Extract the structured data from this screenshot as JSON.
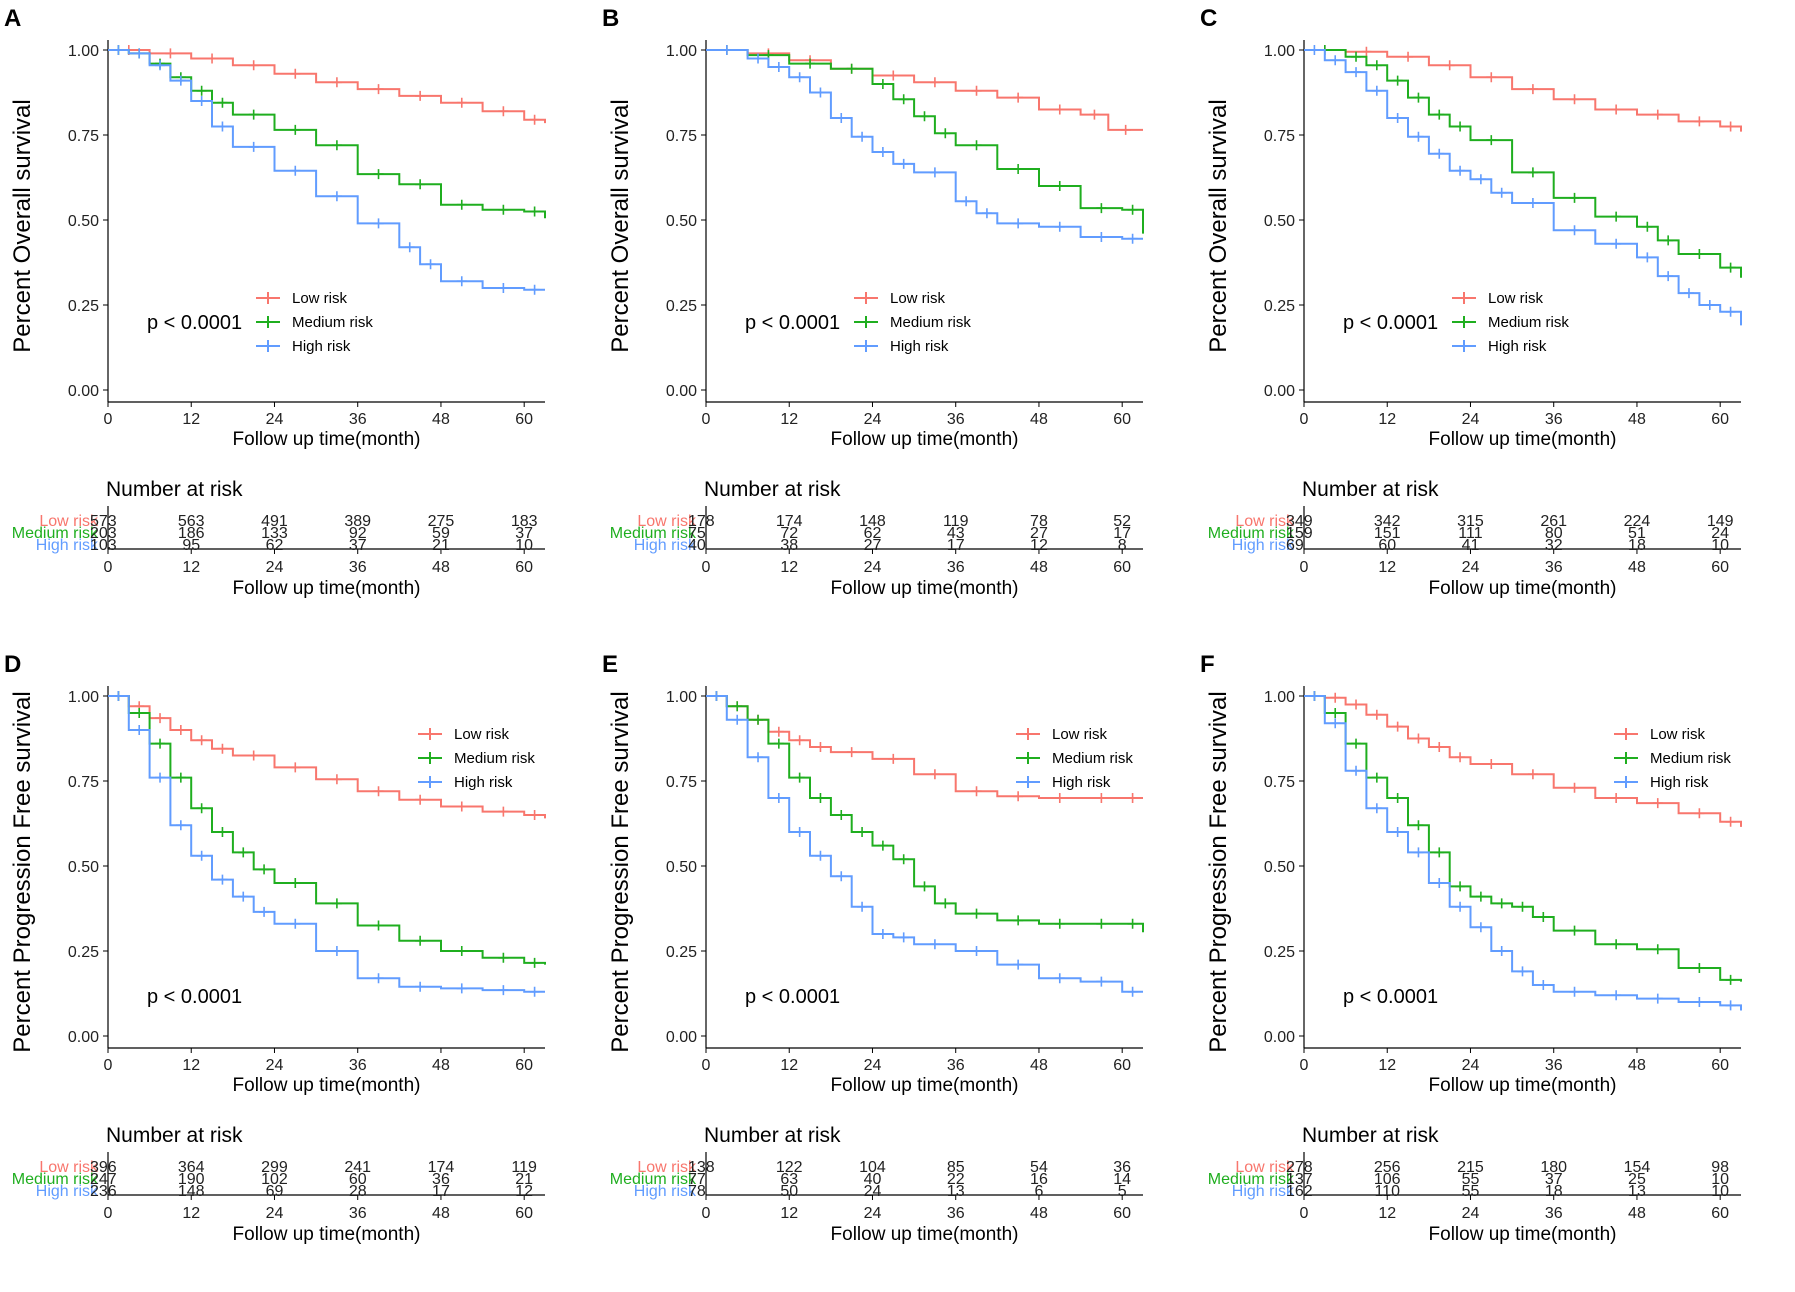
{
  "figure": {
    "number_at_risk_label": "Number at risk",
    "x_ticks": [
      0,
      12,
      24,
      36,
      48,
      60
    ],
    "y_ticks": [
      "0.00",
      "0.25",
      "0.50",
      "0.75",
      "1.00"
    ],
    "group_colors": {
      "low": "#F8766D",
      "medium": "#1FAE1F",
      "high": "#619CFF"
    }
  },
  "chart_data": [
    {
      "panel": "A",
      "type": "line",
      "ylabel": "Percent Overall survival",
      "xlabel": "Follow up time(month)",
      "pvalue": "p < 0.0001",
      "xlim": [
        0,
        63
      ],
      "ylim": [
        0,
        1
      ],
      "legend_position": "center",
      "series": [
        {
          "name": "Low risk",
          "x": [
            0,
            6,
            12,
            18,
            24,
            30,
            36,
            42,
            48,
            54,
            60,
            63
          ],
          "values": [
            1,
            0.99,
            0.975,
            0.955,
            0.93,
            0.905,
            0.885,
            0.865,
            0.845,
            0.82,
            0.795,
            0.785
          ]
        },
        {
          "name": "Medium risk",
          "x": [
            0,
            3,
            6,
            9,
            12,
            15,
            18,
            24,
            30,
            36,
            42,
            48,
            54,
            60,
            63
          ],
          "values": [
            1,
            0.99,
            0.96,
            0.92,
            0.88,
            0.845,
            0.81,
            0.765,
            0.72,
            0.635,
            0.605,
            0.545,
            0.53,
            0.525,
            0.505
          ]
        },
        {
          "name": "High risk",
          "x": [
            0,
            3,
            6,
            9,
            12,
            15,
            18,
            24,
            30,
            36,
            42,
            45,
            48,
            54,
            60,
            63
          ],
          "values": [
            1,
            0.99,
            0.955,
            0.91,
            0.85,
            0.775,
            0.715,
            0.645,
            0.57,
            0.49,
            0.42,
            0.37,
            0.32,
            0.3,
            0.295,
            0.295
          ]
        }
      ],
      "risk_table": {
        "Low risk": [
          573,
          563,
          491,
          389,
          275,
          183
        ],
        "Medium risk": [
          203,
          186,
          133,
          92,
          59,
          37
        ],
        "High risk": [
          103,
          95,
          62,
          37,
          21,
          10
        ]
      }
    },
    {
      "panel": "B",
      "type": "line",
      "ylabel": "Percent Overall survival",
      "xlabel": "Follow up time(month)",
      "pvalue": "p < 0.0001",
      "xlim": [
        0,
        63
      ],
      "ylim": [
        0,
        1
      ],
      "legend_position": "center",
      "series": [
        {
          "name": "Low risk",
          "x": [
            0,
            6,
            12,
            18,
            24,
            30,
            36,
            42,
            48,
            54,
            58,
            63
          ],
          "values": [
            1,
            0.99,
            0.97,
            0.945,
            0.925,
            0.905,
            0.88,
            0.86,
            0.825,
            0.81,
            0.765,
            0.765
          ]
        },
        {
          "name": "Medium risk",
          "x": [
            0,
            6,
            12,
            18,
            24,
            27,
            30,
            33,
            36,
            42,
            48,
            54,
            60,
            63
          ],
          "values": [
            1,
            0.985,
            0.96,
            0.945,
            0.9,
            0.855,
            0.805,
            0.755,
            0.72,
            0.65,
            0.6,
            0.535,
            0.53,
            0.46
          ]
        },
        {
          "name": "High risk",
          "x": [
            0,
            6,
            9,
            12,
            15,
            18,
            21,
            24,
            27,
            30,
            36,
            39,
            42,
            48,
            54,
            60,
            63
          ],
          "values": [
            1,
            0.975,
            0.95,
            0.92,
            0.875,
            0.8,
            0.745,
            0.7,
            0.665,
            0.64,
            0.555,
            0.52,
            0.49,
            0.48,
            0.45,
            0.445,
            0.445
          ]
        }
      ],
      "risk_table": {
        "Low risk": [
          178,
          174,
          148,
          119,
          78,
          52
        ],
        "Medium risk": [
          75,
          72,
          62,
          43,
          27,
          17
        ],
        "High risk": [
          40,
          38,
          27,
          17,
          12,
          8
        ]
      }
    },
    {
      "panel": "C",
      "type": "line",
      "ylabel": "Percent Overall survival",
      "xlabel": "Follow up time(month)",
      "pvalue": "p < 0.0001",
      "xlim": [
        0,
        63
      ],
      "ylim": [
        0,
        1
      ],
      "legend_position": "center",
      "series": [
        {
          "name": "Low risk",
          "x": [
            0,
            6,
            12,
            18,
            24,
            30,
            36,
            42,
            48,
            54,
            60,
            63
          ],
          "values": [
            1,
            0.995,
            0.98,
            0.955,
            0.92,
            0.885,
            0.855,
            0.825,
            0.81,
            0.79,
            0.775,
            0.76
          ]
        },
        {
          "name": "Medium risk",
          "x": [
            0,
            6,
            9,
            12,
            15,
            18,
            21,
            24,
            30,
            36,
            42,
            48,
            51,
            54,
            60,
            63
          ],
          "values": [
            1,
            0.98,
            0.955,
            0.91,
            0.86,
            0.81,
            0.775,
            0.735,
            0.64,
            0.565,
            0.51,
            0.48,
            0.44,
            0.4,
            0.36,
            0.33
          ]
        },
        {
          "name": "High risk",
          "x": [
            0,
            3,
            6,
            9,
            12,
            15,
            18,
            21,
            24,
            27,
            30,
            36,
            42,
            48,
            51,
            54,
            57,
            60,
            63
          ],
          "values": [
            1,
            0.97,
            0.935,
            0.88,
            0.8,
            0.745,
            0.695,
            0.645,
            0.62,
            0.58,
            0.55,
            0.47,
            0.43,
            0.39,
            0.335,
            0.285,
            0.25,
            0.23,
            0.19
          ]
        }
      ],
      "risk_table": {
        "Low risk": [
          349,
          342,
          315,
          261,
          224,
          149
        ],
        "Medium risk": [
          159,
          151,
          111,
          80,
          51,
          24
        ],
        "High risk": [
          69,
          60,
          41,
          32,
          18,
          10
        ]
      }
    },
    {
      "panel": "D",
      "type": "line",
      "ylabel": "Percent Progression Free survival",
      "xlabel": "Follow up time(month)",
      "pvalue": "p < 0.0001",
      "xlim": [
        0,
        63
      ],
      "ylim": [
        0,
        1
      ],
      "legend_position": "top-right",
      "series": [
        {
          "name": "Low risk",
          "x": [
            0,
            3,
            6,
            9,
            12,
            15,
            18,
            24,
            30,
            36,
            42,
            48,
            54,
            60,
            63
          ],
          "values": [
            1,
            0.97,
            0.935,
            0.9,
            0.87,
            0.845,
            0.825,
            0.79,
            0.755,
            0.72,
            0.695,
            0.675,
            0.66,
            0.65,
            0.64
          ]
        },
        {
          "name": "Medium risk",
          "x": [
            0,
            3,
            6,
            9,
            12,
            15,
            18,
            21,
            24,
            30,
            36,
            42,
            48,
            54,
            60,
            63
          ],
          "values": [
            1,
            0.95,
            0.86,
            0.76,
            0.67,
            0.6,
            0.54,
            0.49,
            0.45,
            0.39,
            0.325,
            0.28,
            0.25,
            0.23,
            0.215,
            0.21
          ]
        },
        {
          "name": "High risk",
          "x": [
            0,
            3,
            6,
            9,
            12,
            15,
            18,
            21,
            24,
            30,
            36,
            42,
            48,
            54,
            60,
            63
          ],
          "values": [
            1,
            0.9,
            0.76,
            0.62,
            0.53,
            0.46,
            0.41,
            0.365,
            0.33,
            0.25,
            0.17,
            0.145,
            0.14,
            0.135,
            0.13,
            0.13
          ]
        }
      ],
      "risk_table": {
        "Low risk": [
          396,
          364,
          299,
          241,
          174,
          119
        ],
        "Medium risk": [
          247,
          190,
          102,
          60,
          36,
          21
        ],
        "High risk": [
          236,
          148,
          69,
          28,
          17,
          12
        ]
      }
    },
    {
      "panel": "E",
      "type": "line",
      "ylabel": "Percent Progression Free survival",
      "xlabel": "Follow up time(month)",
      "pvalue": "p < 0.0001",
      "xlim": [
        0,
        63
      ],
      "ylim": [
        0,
        1
      ],
      "legend_position": "top-right",
      "series": [
        {
          "name": "Low risk",
          "x": [
            0,
            3,
            6,
            9,
            12,
            15,
            18,
            24,
            30,
            36,
            42,
            48,
            54,
            60,
            63
          ],
          "values": [
            1,
            0.97,
            0.93,
            0.895,
            0.87,
            0.85,
            0.835,
            0.815,
            0.77,
            0.72,
            0.705,
            0.7,
            0.7,
            0.7,
            0.7
          ]
        },
        {
          "name": "Medium risk",
          "x": [
            0,
            3,
            6,
            9,
            12,
            15,
            18,
            21,
            24,
            27,
            30,
            33,
            36,
            42,
            48,
            54,
            60,
            63
          ],
          "values": [
            1,
            0.97,
            0.93,
            0.86,
            0.76,
            0.7,
            0.65,
            0.6,
            0.56,
            0.52,
            0.44,
            0.39,
            0.36,
            0.34,
            0.33,
            0.33,
            0.33,
            0.305
          ]
        },
        {
          "name": "High risk",
          "x": [
            0,
            3,
            6,
            9,
            12,
            15,
            18,
            21,
            24,
            27,
            30,
            36,
            42,
            48,
            54,
            60,
            63
          ],
          "values": [
            1,
            0.93,
            0.82,
            0.7,
            0.6,
            0.53,
            0.47,
            0.38,
            0.3,
            0.29,
            0.27,
            0.25,
            0.21,
            0.17,
            0.16,
            0.13,
            0.13
          ]
        }
      ],
      "risk_table": {
        "Low risk": [
          138,
          122,
          104,
          85,
          54,
          36
        ],
        "Medium risk": [
          77,
          63,
          40,
          22,
          16,
          14
        ],
        "High risk": [
          78,
          50,
          24,
          13,
          6,
          5
        ]
      }
    },
    {
      "panel": "F",
      "type": "line",
      "ylabel": "Percent Progression Free survival",
      "xlabel": "Follow up time(month)",
      "pvalue": "p < 0.0001",
      "xlim": [
        0,
        63
      ],
      "ylim": [
        0,
        1
      ],
      "legend_position": "top-right",
      "series": [
        {
          "name": "Low risk",
          "x": [
            0,
            3,
            6,
            9,
            12,
            15,
            18,
            21,
            24,
            30,
            36,
            42,
            48,
            54,
            60,
            63
          ],
          "values": [
            1,
            0.995,
            0.975,
            0.945,
            0.91,
            0.875,
            0.85,
            0.82,
            0.8,
            0.77,
            0.73,
            0.7,
            0.685,
            0.655,
            0.63,
            0.615
          ]
        },
        {
          "name": "Medium risk",
          "x": [
            0,
            3,
            6,
            9,
            12,
            15,
            18,
            21,
            24,
            27,
            30,
            33,
            36,
            42,
            48,
            54,
            60,
            63
          ],
          "values": [
            1,
            0.95,
            0.86,
            0.76,
            0.7,
            0.62,
            0.54,
            0.44,
            0.41,
            0.39,
            0.38,
            0.35,
            0.31,
            0.27,
            0.255,
            0.2,
            0.165,
            0.16
          ]
        },
        {
          "name": "High risk",
          "x": [
            0,
            3,
            6,
            9,
            12,
            15,
            18,
            21,
            24,
            27,
            30,
            33,
            36,
            42,
            48,
            54,
            60,
            63
          ],
          "values": [
            1,
            0.92,
            0.78,
            0.67,
            0.6,
            0.54,
            0.45,
            0.38,
            0.32,
            0.25,
            0.19,
            0.15,
            0.13,
            0.12,
            0.11,
            0.1,
            0.09,
            0.075
          ]
        }
      ],
      "risk_table": {
        "Low risk": [
          278,
          256,
          215,
          180,
          154,
          98
        ],
        "Medium risk": [
          137,
          106,
          55,
          37,
          25,
          10
        ],
        "High risk": [
          162,
          110,
          55,
          18,
          13,
          10
        ]
      }
    }
  ]
}
